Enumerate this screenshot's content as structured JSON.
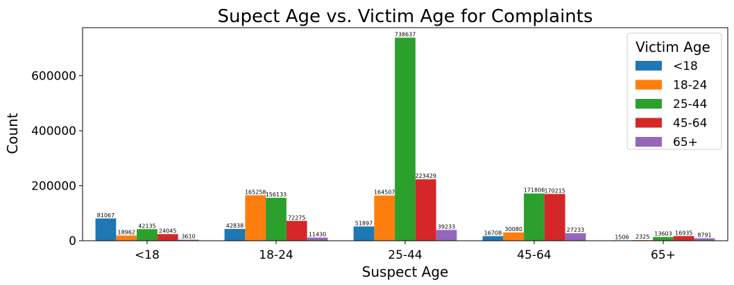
{
  "chart_data": {
    "type": "bar",
    "title": "Supect Age vs. Victim Age for Complaints",
    "xlabel": "Suspect Age",
    "ylabel": "Count",
    "ylim": [
      0,
      775000
    ],
    "yticks": [
      0,
      200000,
      400000,
      600000
    ],
    "categories": [
      "<18",
      "18-24",
      "25-44",
      "45-64",
      "65+"
    ],
    "legend": {
      "title": "Victim Age",
      "placement": "top-right"
    },
    "grid": false,
    "series": [
      {
        "name": "<18",
        "color": "#1f77b4",
        "values": [
          81067,
          42838,
          51897,
          16708,
          1506
        ]
      },
      {
        "name": "18-24",
        "color": "#ff7f0e",
        "values": [
          18962,
          165258,
          164507,
          30080,
          2325
        ]
      },
      {
        "name": "25-44",
        "color": "#2ca02c",
        "values": [
          42135,
          156133,
          738637,
          171806,
          13603
        ]
      },
      {
        "name": "45-64",
        "color": "#d62728",
        "values": [
          24045,
          72275,
          223429,
          170215,
          16935
        ]
      },
      {
        "name": "65+",
        "color": "#9467bd",
        "values": [
          3610,
          11430,
          39233,
          27233,
          8791
        ]
      }
    ]
  }
}
